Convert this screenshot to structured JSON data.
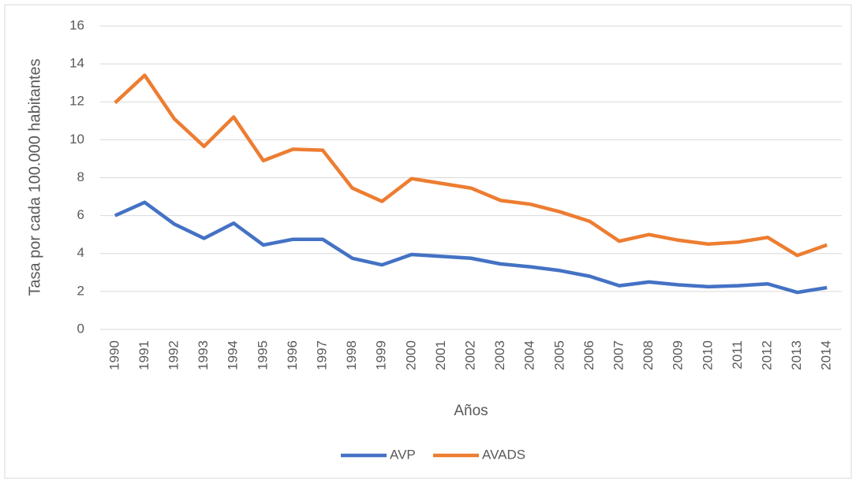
{
  "chart_data": {
    "type": "line",
    "y_label": "Tasa por cada 100.000 habitantes",
    "x_label": "Años",
    "categories": [
      "1990",
      "1991",
      "1992",
      "1993",
      "1994",
      "1995",
      "1996",
      "1997",
      "1998",
      "1999",
      "2000",
      "2001",
      "2002",
      "2003",
      "2004",
      "2005",
      "2006",
      "2007",
      "2008",
      "2009",
      "2010",
      "2011",
      "2012",
      "2013",
      "2014"
    ],
    "series": [
      {
        "name": "AVP",
        "color": "#4472c4",
        "values": [
          6.0,
          6.7,
          5.55,
          4.8,
          5.6,
          4.45,
          4.75,
          4.75,
          3.75,
          3.4,
          3.95,
          3.85,
          3.75,
          3.45,
          3.3,
          3.1,
          2.8,
          2.3,
          2.5,
          2.35,
          2.25,
          2.3,
          2.4,
          1.95,
          2.2
        ]
      },
      {
        "name": "AVADS",
        "color": "#ed7d31",
        "values": [
          11.95,
          13.4,
          11.1,
          9.65,
          11.2,
          8.9,
          9.5,
          9.45,
          7.45,
          6.75,
          7.95,
          7.7,
          7.45,
          6.8,
          6.6,
          6.2,
          5.7,
          4.65,
          5.0,
          4.7,
          4.5,
          4.6,
          4.85,
          3.9,
          4.45
        ]
      }
    ],
    "ylim": [
      0,
      16
    ],
    "yticks": [
      0,
      2,
      4,
      6,
      8,
      10,
      12,
      14,
      16
    ],
    "grid": true,
    "legend": "bottom"
  }
}
